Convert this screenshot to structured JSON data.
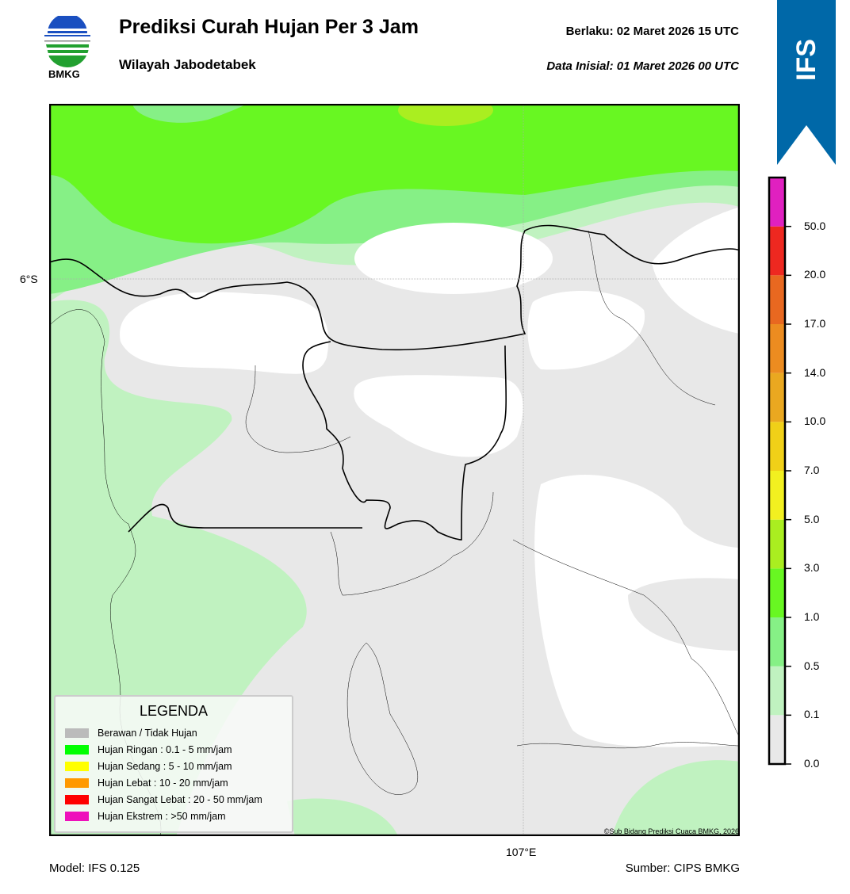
{
  "header": {
    "title": "Prediksi Curah Hujan Per 3 Jam",
    "subtitle": "Wilayah Jabodetabek",
    "valid": "Berlaku:  02 Maret 2026 15 UTC",
    "initial": "Data Inisial:  01 Maret 2026 00 UTC",
    "logo_text": "BMKG",
    "model_badge": "IFS",
    "badge_color": "#0068a8"
  },
  "map": {
    "lat_label": "6°S",
    "lon_label": "107°E",
    "copyright": "©Sub Bidang Prediksi Cuaca BMKG, 2026"
  },
  "legend": {
    "title": "LEGENDA",
    "items": [
      {
        "label": "Berawan / Tidak Hujan",
        "color": "#bbbbbb"
      },
      {
        "label": "Hujan Ringan : 0.1 - 5 mm/jam",
        "color": "#00ff00"
      },
      {
        "label": "Hujan Sedang : 5 - 10 mm/jam",
        "color": "#ffff00"
      },
      {
        "label": "Hujan Lebat : 10 - 20 mm/jam",
        "color": "#ff9900"
      },
      {
        "label": "Hujan Sangat Lebat : 20 - 50 mm/jam",
        "color": "#ff0000"
      },
      {
        "label": "Hujan Ekstrem : >50 mm/jam",
        "color": "#ee11bb"
      }
    ]
  },
  "colorbar": {
    "ticks": [
      "0.0",
      "0.1",
      "0.5",
      "1.0",
      "3.0",
      "5.0",
      "7.0",
      "10.0",
      "14.0",
      "17.0",
      "20.0",
      "50.0"
    ],
    "colors": [
      "#e8e8e8",
      "#c0f2c0",
      "#86f086",
      "#68f722",
      "#aaee20",
      "#f2f020",
      "#f0d018",
      "#eaa820",
      "#ec8c20",
      "#e86820",
      "#ee2820",
      "#e020c0"
    ]
  },
  "footer": {
    "model": "Model: IFS 0.125",
    "source": "Sumber: CIPS BMKG"
  }
}
